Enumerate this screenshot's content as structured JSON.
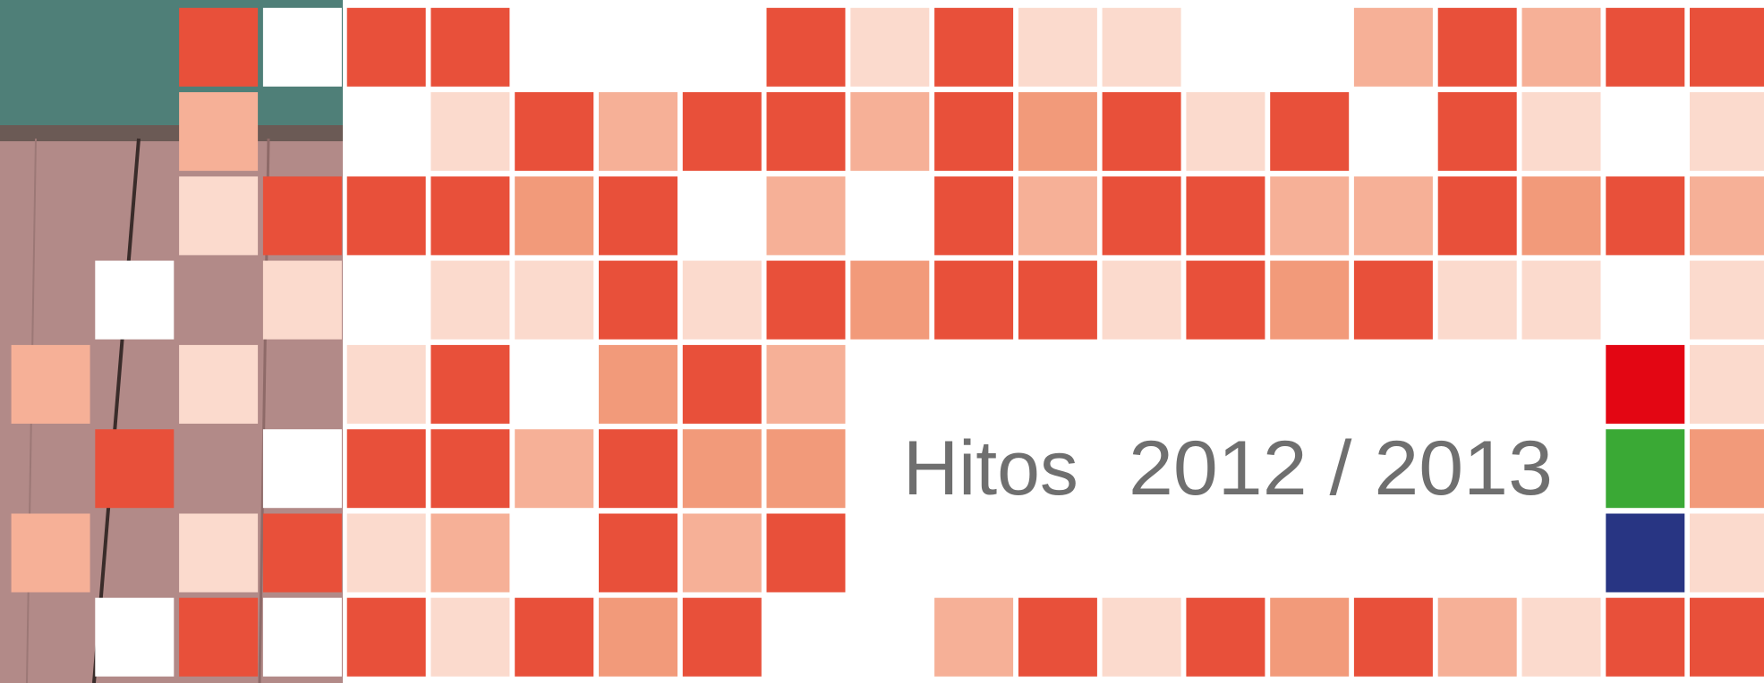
{
  "heading": {
    "word": "Hitos",
    "years": "2012 / 2013"
  }
}
